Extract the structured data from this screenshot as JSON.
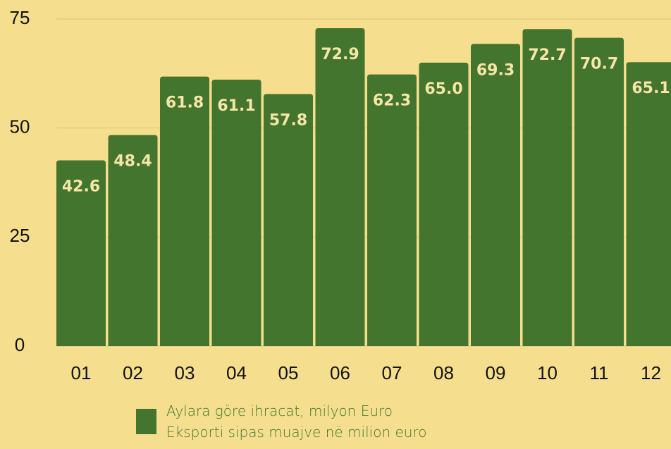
{
  "chart_data": {
    "type": "bar",
    "categories": [
      "01",
      "02",
      "03",
      "04",
      "05",
      "06",
      "07",
      "08",
      "09",
      "10",
      "11",
      "12"
    ],
    "series": [
      {
        "name": "Aylara göre ihracat, milyon Euro\nEksporti sipas muajve në milion euro",
        "color": "#44752e",
        "values": [
          42.6,
          48.4,
          61.8,
          61.1,
          57.8,
          72.9,
          62.3,
          65.0,
          69.3,
          72.7,
          70.7,
          65.1
        ],
        "value_labels": [
          "42.6",
          "48.4",
          "61.8",
          "61.1",
          "57.8",
          "72.9",
          "62.3",
          "65.0",
          "69.3",
          "72.7",
          "70.7",
          "65.1"
        ]
      }
    ],
    "ylim": [
      0,
      75
    ],
    "yticks": [
      0,
      25,
      50,
      75
    ],
    "grid": true,
    "legend": "bottom"
  }
}
